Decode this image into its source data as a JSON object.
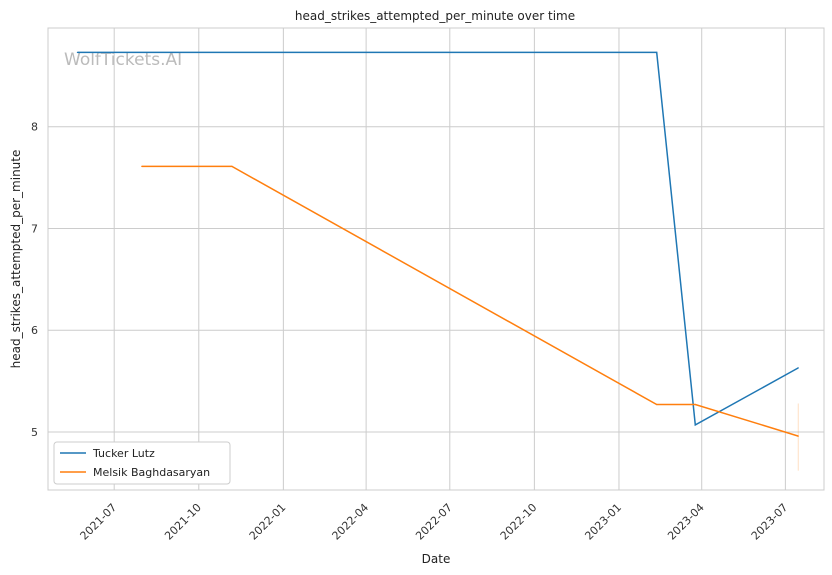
{
  "chart_data": {
    "type": "line",
    "title": "head_strikes_attempted_per_minute over time",
    "xlabel": "Date",
    "ylabel": "head_strikes_attempted_per_minute",
    "watermark": "WolfTickets.AI",
    "x_ticks": [
      "2021-07",
      "2021-10",
      "2022-01",
      "2022-04",
      "2022-07",
      "2022-10",
      "2023-01",
      "2023-04",
      "2023-07"
    ],
    "y_ticks": [
      5,
      6,
      7,
      8
    ],
    "xlim": [
      "2021-04-20",
      "2023-08-12"
    ],
    "ylim": [
      4.43,
      8.97
    ],
    "grid": true,
    "legend_position": "bottom-left",
    "series": [
      {
        "name": "Tucker Lutz",
        "color": "#1f77b4",
        "points": [
          {
            "x": "2021-05-22",
            "y": 8.73
          },
          {
            "x": "2023-02-11",
            "y": 8.73
          },
          {
            "x": "2023-03-25",
            "y": 5.07
          },
          {
            "x": "2023-07-15",
            "y": 5.63
          }
        ]
      },
      {
        "name": "Melsik Baghdasaryan",
        "color": "#ff7f0e",
        "points": [
          {
            "x": "2021-07-31",
            "y": 7.61
          },
          {
            "x": "2021-11-06",
            "y": 7.61
          },
          {
            "x": "2023-02-11",
            "y": 5.27
          },
          {
            "x": "2023-03-25",
            "y": 5.27
          },
          {
            "x": "2023-07-15",
            "y": 4.96
          }
        ]
      }
    ]
  }
}
